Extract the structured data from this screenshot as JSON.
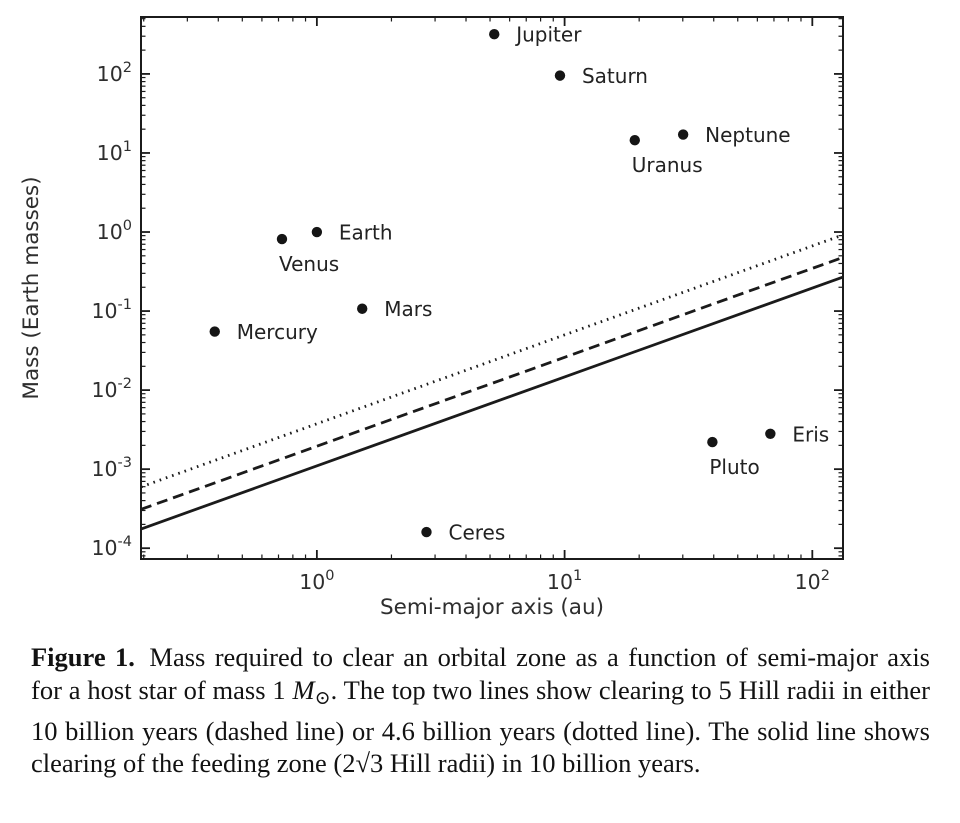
{
  "caption": {
    "label": "Figure 1.",
    "body_1": "Mass required to clear an orbital zone as a function of semi-major axis for a host star of mass 1 ",
    "msun_m": "M",
    "msun_symbol": "⊙",
    "body_2": ". The top two lines show clearing to 5 Hill radii in either 10 billion years (dashed line) or 4.6 billion years (dotted line). The solid line shows clearing of the feeding zone (2√3 Hill radii) in 10 billion years."
  },
  "chart_data": {
    "type": "scatter",
    "title": "",
    "xlabel": "Semi-major axis (au)",
    "ylabel": "Mass (Earth masses)",
    "x_scale": "log",
    "y_scale": "log",
    "xlim": [
      0.195,
      133
    ],
    "ylim": [
      7.3e-05,
      525
    ],
    "grid": false,
    "legend": "none",
    "x_major_ticks": [
      1,
      10,
      100
    ],
    "y_major_ticks": [
      0.0001,
      0.001,
      0.01,
      0.1,
      1,
      10,
      100
    ],
    "x_tick_labels": [
      "10^0",
      "10^1",
      "10^2"
    ],
    "y_tick_labels": [
      "10^-4",
      "10^-3",
      "10^-2",
      "10^-1",
      "10^0",
      "10^1",
      "10^2"
    ],
    "ink_color": "#1b1b1b",
    "points": [
      {
        "name": "Mercury",
        "a_au": 0.387,
        "mass_earth": 0.055,
        "label_side": "right"
      },
      {
        "name": "Venus",
        "a_au": 0.723,
        "mass_earth": 0.815,
        "label_side": "below"
      },
      {
        "name": "Earth",
        "a_au": 1.0,
        "mass_earth": 1.0,
        "label_side": "right"
      },
      {
        "name": "Mars",
        "a_au": 1.524,
        "mass_earth": 0.107,
        "label_side": "right"
      },
      {
        "name": "Ceres",
        "a_au": 2.77,
        "mass_earth": 0.00016,
        "label_side": "right"
      },
      {
        "name": "Jupiter",
        "a_au": 5.2,
        "mass_earth": 318,
        "label_side": "right"
      },
      {
        "name": "Saturn",
        "a_au": 9.58,
        "mass_earth": 95.2,
        "label_side": "right"
      },
      {
        "name": "Uranus",
        "a_au": 19.2,
        "mass_earth": 14.5,
        "label_side": "below"
      },
      {
        "name": "Neptune",
        "a_au": 30.1,
        "mass_earth": 17.1,
        "label_side": "right"
      },
      {
        "name": "Pluto",
        "a_au": 39.5,
        "mass_earth": 0.0022,
        "label_side": "below"
      },
      {
        "name": "Eris",
        "a_au": 67.7,
        "mass_earth": 0.0028,
        "label_side": "right"
      }
    ],
    "lines": [
      {
        "name": "feeding-zone-2sqrt3-hill-radii-10-billion-years",
        "style": "solid",
        "mass_coefficient": 0.0011,
        "sma_exponent": 1.125
      },
      {
        "name": "5-hill-radii-10-billion-years",
        "style": "dashed",
        "mass_coefficient": 0.00195,
        "sma_exponent": 1.125
      },
      {
        "name": "5-hill-radii-4.6-billion-years",
        "style": "dotted",
        "mass_coefficient": 0.00375,
        "sma_exponent": 1.125
      }
    ]
  }
}
